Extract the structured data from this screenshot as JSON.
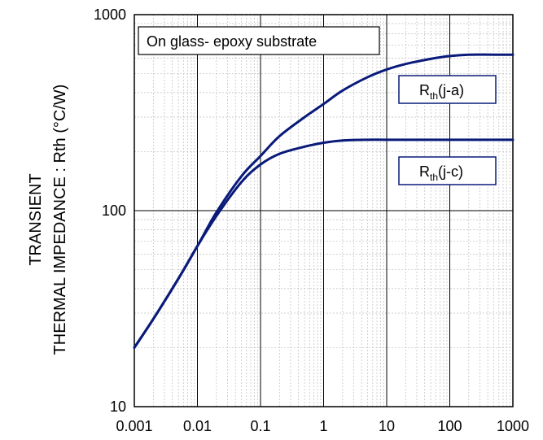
{
  "chart_data": {
    "type": "line",
    "xscale": "log",
    "yscale": "log",
    "xlim": [
      0.001,
      1000
    ],
    "ylim": [
      10,
      1000
    ],
    "grid": true,
    "x_ticks": [
      "0.001",
      "0.01",
      "0.1",
      "1",
      "10",
      "100",
      "1000"
    ],
    "y_ticks": [
      "10",
      "100",
      "1000"
    ],
    "ylabel": [
      "TRANSIENT",
      "THERMAL IMPEDANCE : Rth (°C/W)"
    ],
    "xlabel": "",
    "annotation": "On glass- epoxy substrate",
    "series": [
      {
        "name": "R_th(j-a)",
        "label_main": "R",
        "label_sub": "th",
        "label_rest": "(j-a)",
        "color": "#0a1a7a",
        "x": [
          0.001,
          0.002,
          0.005,
          0.01,
          0.02,
          0.05,
          0.1,
          0.2,
          0.5,
          1,
          2,
          5,
          10,
          20,
          50,
          100,
          200,
          500,
          1000
        ],
        "y": [
          20,
          28,
          45,
          66,
          98,
          150,
          190,
          240,
          300,
          350,
          410,
          480,
          525,
          560,
          595,
          615,
          625,
          625,
          625
        ]
      },
      {
        "name": "R_th(j-c)",
        "label_main": "R",
        "label_sub": "th",
        "label_rest": "(j-c)",
        "color": "#0a1a7a",
        "x": [
          0.001,
          0.002,
          0.005,
          0.01,
          0.02,
          0.05,
          0.1,
          0.2,
          0.5,
          1,
          2,
          5,
          10,
          100,
          1000
        ],
        "y": [
          20,
          28,
          45,
          66,
          94,
          140,
          172,
          195,
          212,
          222,
          228,
          230,
          230,
          230,
          230
        ]
      }
    ]
  }
}
